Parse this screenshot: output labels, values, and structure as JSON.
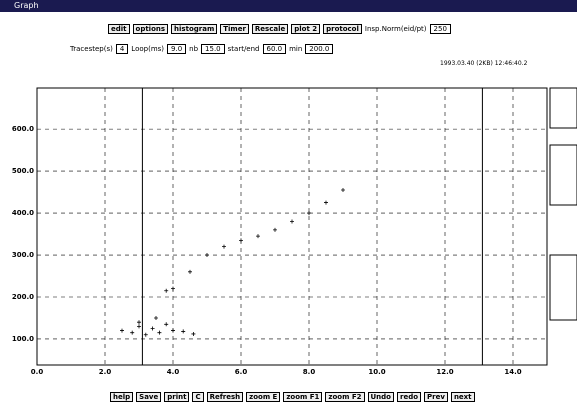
{
  "window": {
    "title": "Graph"
  },
  "toolbar": {
    "buttons": [
      "edit",
      "options",
      "histogram",
      "Timer",
      "Rescale",
      "plot 2",
      "protocol"
    ],
    "label": "Insp.Norm(eid/pt)",
    "field": "250"
  },
  "params": [
    {
      "label": "Tracestep(s)",
      "value": "4"
    },
    {
      "label": "Loop(ms)",
      "value": "9.0"
    },
    {
      "label": "nb",
      "value": "15.0"
    },
    {
      "label": "start/end",
      "value": "60.0"
    },
    {
      "label": "min",
      "value": "200.0"
    }
  ],
  "timestamp": "1993.03.40 (2KB) 12:46:40.2",
  "chart_data": {
    "type": "scatter",
    "x": [
      2.5,
      2.8,
      3.0,
      3.2,
      3.4,
      3.6,
      3.8,
      4.0,
      4.3,
      4.6,
      3.0,
      3.5,
      3.8,
      4.0,
      4.5,
      5.0,
      5.5,
      6.0,
      6.5,
      7.0,
      7.5,
      8.0,
      8.5,
      9.0
    ],
    "values": [
      120,
      115,
      130,
      110,
      125,
      115,
      135,
      120,
      118,
      112,
      140,
      150,
      215,
      220,
      260,
      300,
      320,
      335,
      345,
      360,
      380,
      400,
      425,
      455
    ],
    "color": "#000000",
    "xlim": [
      0,
      15
    ],
    "ylim": [
      38,
      698
    ],
    "xticks": [
      {
        "value": 0,
        "label": "0.0"
      },
      {
        "value": 2,
        "label": "2.0"
      },
      {
        "value": 4,
        "label": "4.0"
      },
      {
        "value": 6,
        "label": "6.0"
      },
      {
        "value": 8,
        "label": "8.0"
      },
      {
        "value": 10,
        "label": "10.0"
      },
      {
        "value": 12,
        "label": "12.0"
      },
      {
        "value": 14,
        "label": "14.0"
      }
    ],
    "yticks": [
      {
        "value": 100,
        "label": "100.0"
      },
      {
        "value": 200,
        "label": "200.0"
      },
      {
        "value": 300,
        "label": "300.0"
      },
      {
        "value": 400,
        "label": "400.0"
      },
      {
        "value": 500,
        "label": "500.0"
      },
      {
        "value": 600,
        "label": "600.0"
      }
    ],
    "cursors": [
      3.1,
      13.1
    ],
    "grid": true
  },
  "bottom_buttons": [
    "help",
    "Save",
    "print",
    "C",
    "Refresh",
    "zoom E",
    "zoom F1",
    "zoom F2",
    "Undo",
    "redo",
    "Prev",
    "next"
  ]
}
